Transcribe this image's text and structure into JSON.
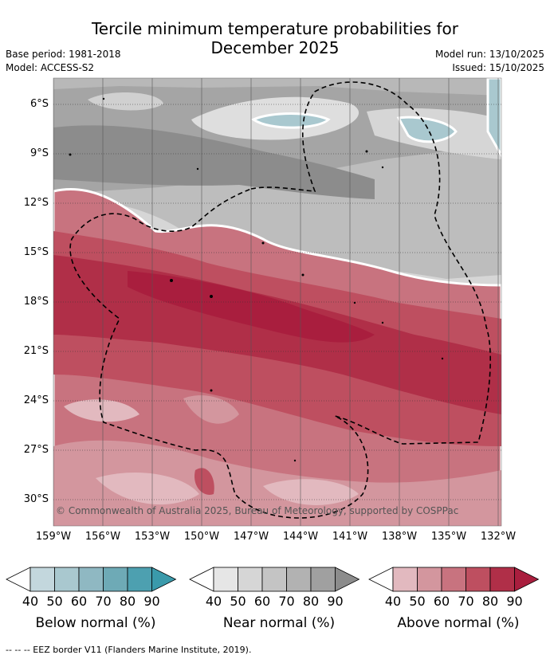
{
  "title_line1": "Tercile minimum temperature probabilities for",
  "title_line2": "December 2025",
  "base_period": "Base period: 1981-2018",
  "model": "Model: ACCESS-S2",
  "model_run": "Model run: 13/10/2025",
  "issued": "Issued: 15/10/2025",
  "copyright": "© Commonwealth of Australia 2025, Bureau of Meteorology, supported by COSPPac",
  "footer": "--  --  -- EEZ border V11 (Flanders Marine Institute, 2019).",
  "lat_labels": [
    "6°S",
    "9°S",
    "12°S",
    "15°S",
    "18°S",
    "21°S",
    "24°S",
    "27°S",
    "30°S"
  ],
  "lon_labels": [
    "159°W",
    "156°W",
    "153°W",
    "150°W",
    "147°W",
    "144°W",
    "141°W",
    "138°W",
    "135°W",
    "132°W"
  ],
  "legends": [
    {
      "title": "Below normal (%)",
      "ticks": [
        "40",
        "50",
        "60",
        "70",
        "80",
        "90"
      ],
      "colors": [
        "#c3d7dd",
        "#a9c8cf",
        "#8fb8c2",
        "#6eaab6",
        "#4da0b0"
      ]
    },
    {
      "title": "Near normal (%)",
      "ticks": [
        "40",
        "50",
        "60",
        "70",
        "80",
        "90"
      ],
      "colors": [
        "#e6e6e6",
        "#d6d6d6",
        "#c4c4c4",
        "#b2b2b2",
        "#a0a0a0"
      ]
    },
    {
      "title": "Above normal (%)",
      "ticks": [
        "40",
        "50",
        "60",
        "70",
        "80",
        "90"
      ],
      "colors": [
        "#e2b9bf",
        "#d3969e",
        "#c8737f",
        "#be4f60",
        "#b02f48"
      ]
    }
  ],
  "colors": {
    "near_dark": "#8c8c8c",
    "near_mid": "#a5a5a5",
    "near_light": "#c7c7c7",
    "near_pale": "#dedede",
    "below_light": "#a9c8cf",
    "below_mid": "#8fb8c2",
    "above_pale": "#e2b9bf",
    "above_light": "#d3969e",
    "above_mid": "#c8737f",
    "above_strong": "#be4f60",
    "above_dark": "#b02f48",
    "above_darkest": "#a91e3e"
  }
}
